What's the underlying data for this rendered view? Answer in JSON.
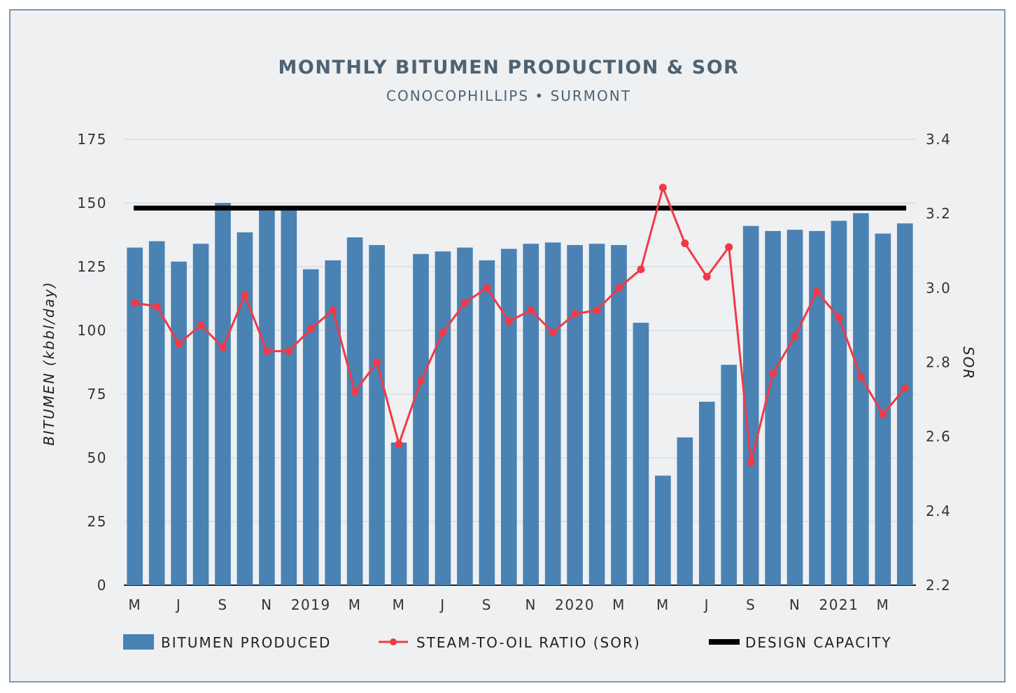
{
  "chart_data": {
    "type": "bar+line",
    "title": "MONTHLY BITUMEN PRODUCTION & SOR",
    "subtitle": "CONOCOPHILLIPS • SURMONT",
    "y_left": {
      "label": "BITUMEN (kbbl/day)",
      "min": 0,
      "max": 175,
      "ticks": [
        0,
        25,
        50,
        75,
        100,
        125,
        150,
        175
      ]
    },
    "y_right": {
      "label": "SOR",
      "min": 2.2,
      "max": 3.4,
      "ticks": [
        "2.2",
        "2.4",
        "2.6",
        "2.8",
        "3.0",
        "3.2",
        "3.4"
      ]
    },
    "x_tick_labels": [
      "M",
      "J",
      "S",
      "N",
      "2019",
      "M",
      "M",
      "J",
      "S",
      "N",
      "2020",
      "M",
      "M",
      "J",
      "S",
      "N",
      "2021",
      "M"
    ],
    "x_tick_positions": [
      0,
      2,
      4,
      6,
      8,
      10,
      12,
      14,
      16,
      18,
      20,
      22,
      24,
      26,
      28,
      30,
      32,
      34
    ],
    "series": [
      {
        "name": "BITUMEN PRODUCED",
        "type": "bar",
        "axis": "left",
        "color": "#4a82b4",
        "values": [
          132.5,
          135.0,
          127.0,
          134.0,
          150.0,
          138.5,
          147.0,
          148.0,
          124.0,
          127.5,
          136.5,
          133.5,
          56.0,
          130.0,
          131.0,
          132.5,
          127.5,
          132.0,
          134.0,
          134.5,
          133.5,
          134.0,
          133.5,
          103.0,
          43.0,
          58.0,
          72.0,
          86.5,
          141.0,
          139.0,
          139.5,
          139.0,
          143.0,
          146.0,
          138.0,
          142.0
        ]
      },
      {
        "name": "STEAM-TO-OIL RATIO (SOR)",
        "type": "line",
        "axis": "right",
        "color": "#f03a47",
        "values": [
          2.96,
          2.95,
          2.85,
          2.9,
          2.84,
          2.98,
          2.83,
          2.83,
          2.89,
          2.94,
          2.72,
          2.8,
          2.58,
          2.75,
          2.88,
          2.96,
          3.0,
          2.91,
          2.94,
          2.88,
          2.93,
          2.94,
          3.0,
          3.05,
          3.27,
          3.12,
          3.03,
          3.11,
          2.53,
          2.77,
          2.87,
          2.99,
          2.92,
          2.76,
          2.66,
          2.73
        ]
      },
      {
        "name": "DESIGN CAPACITY",
        "type": "hline",
        "axis": "left",
        "color": "#000000",
        "value": 148
      }
    ]
  }
}
